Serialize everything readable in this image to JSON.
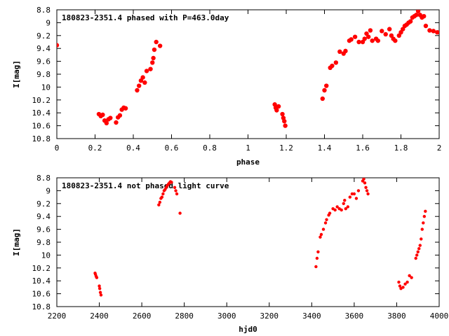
{
  "chart_data": [
    {
      "type": "scatter",
      "title": "180823-2351.4 phased with P=463.0day",
      "xlabel": "phase",
      "ylabel": "I[mag]",
      "xlim": [
        0,
        2
      ],
      "ylim": [
        10.8,
        8.8
      ],
      "x_ticks": [
        0,
        0.2,
        0.4,
        0.6,
        0.8,
        1,
        1.2,
        1.4,
        1.6,
        1.8,
        2
      ],
      "x_tick_labels": [
        "0",
        "0.2",
        "0.4",
        "0.6",
        "0.8",
        "1",
        "1.2",
        "1.4",
        "1.6",
        "1.8",
        "2"
      ],
      "y_ticks": [
        8.8,
        9,
        9.2,
        9.4,
        9.6,
        9.8,
        10,
        10.2,
        10.4,
        10.6,
        10.8
      ],
      "y_tick_labels": [
        "8.8",
        "9",
        "9.2",
        "9.4",
        "9.6",
        "9.8",
        "10",
        "10.2",
        "10.4",
        "10.6",
        "10.8"
      ],
      "marker_color": "#ff0000",
      "series": [
        {
          "points": [
            [
              0.0,
              9.35
            ],
            [
              0.22,
              10.42
            ],
            [
              0.23,
              10.45
            ],
            [
              0.24,
              10.43
            ],
            [
              0.25,
              10.52
            ],
            [
              0.26,
              10.56
            ],
            [
              0.27,
              10.5
            ],
            [
              0.28,
              10.48
            ],
            [
              0.31,
              10.55
            ],
            [
              0.32,
              10.47
            ],
            [
              0.33,
              10.44
            ],
            [
              0.34,
              10.35
            ],
            [
              0.35,
              10.32
            ],
            [
              0.36,
              10.33
            ],
            [
              0.42,
              10.05
            ],
            [
              0.43,
              9.98
            ],
            [
              0.44,
              9.9
            ],
            [
              0.45,
              9.85
            ],
            [
              0.46,
              9.93
            ],
            [
              0.47,
              9.75
            ],
            [
              0.49,
              9.72
            ],
            [
              0.5,
              9.62
            ],
            [
              0.505,
              9.55
            ],
            [
              0.51,
              9.42
            ],
            [
              0.52,
              9.3
            ],
            [
              0.54,
              9.36
            ],
            [
              1.14,
              10.27
            ],
            [
              1.145,
              10.32
            ],
            [
              1.15,
              10.36
            ],
            [
              1.16,
              10.3
            ],
            [
              1.18,
              10.42
            ],
            [
              1.185,
              10.48
            ],
            [
              1.19,
              10.53
            ],
            [
              1.195,
              10.6
            ],
            [
              1.39,
              10.18
            ],
            [
              1.4,
              10.05
            ],
            [
              1.41,
              9.98
            ],
            [
              1.43,
              9.7
            ],
            [
              1.44,
              9.67
            ],
            [
              1.46,
              9.62
            ],
            [
              1.48,
              9.45
            ],
            [
              1.5,
              9.48
            ],
            [
              1.51,
              9.44
            ],
            [
              1.53,
              9.28
            ],
            [
              1.54,
              9.26
            ],
            [
              1.56,
              9.22
            ],
            [
              1.58,
              9.3
            ],
            [
              1.6,
              9.3
            ],
            [
              1.61,
              9.25
            ],
            [
              1.62,
              9.17
            ],
            [
              1.63,
              9.22
            ],
            [
              1.64,
              9.12
            ],
            [
              1.65,
              9.28
            ],
            [
              1.67,
              9.25
            ],
            [
              1.68,
              9.28
            ],
            [
              1.7,
              9.13
            ],
            [
              1.72,
              9.18
            ],
            [
              1.74,
              9.1
            ],
            [
              1.75,
              9.2
            ],
            [
              1.76,
              9.25
            ],
            [
              1.77,
              9.28
            ],
            [
              1.79,
              9.2
            ],
            [
              1.8,
              9.15
            ],
            [
              1.81,
              9.1
            ],
            [
              1.82,
              9.05
            ],
            [
              1.83,
              9.03
            ],
            [
              1.84,
              9.0
            ],
            [
              1.85,
              8.98
            ],
            [
              1.86,
              8.92
            ],
            [
              1.87,
              8.9
            ],
            [
              1.88,
              8.88
            ],
            [
              1.89,
              8.82
            ],
            [
              1.9,
              8.88
            ],
            [
              1.91,
              8.92
            ],
            [
              1.92,
              8.9
            ],
            [
              1.93,
              9.05
            ],
            [
              1.95,
              9.12
            ],
            [
              1.97,
              9.13
            ],
            [
              1.99,
              9.15
            ]
          ]
        }
      ]
    },
    {
      "type": "scatter",
      "title": "180823-2351.4 not phased light curve",
      "xlabel": "hjd0",
      "ylabel": "I[mag]",
      "xlim": [
        2200,
        4000
      ],
      "ylim": [
        10.8,
        8.8
      ],
      "x_ticks": [
        2200,
        2400,
        2600,
        2800,
        3000,
        3200,
        3400,
        3600,
        3800,
        4000
      ],
      "x_tick_labels": [
        "2200",
        "2400",
        "2600",
        "2800",
        "3000",
        "3200",
        "3400",
        "3600",
        "3800",
        "4000"
      ],
      "y_ticks": [
        8.8,
        9,
        9.2,
        9.4,
        9.6,
        9.8,
        10,
        10.2,
        10.4,
        10.6,
        10.8
      ],
      "y_tick_labels": [
        "8.8",
        "9",
        "9.2",
        "9.4",
        "9.6",
        "9.8",
        "10",
        "10.2",
        "10.4",
        "10.6",
        "10.8"
      ],
      "marker_color": "#ff0000",
      "series": [
        {
          "points": [
            [
              2380,
              10.28
            ],
            [
              2382,
              10.3
            ],
            [
              2385,
              10.33
            ],
            [
              2388,
              10.35
            ],
            [
              2400,
              10.48
            ],
            [
              2402,
              10.52
            ],
            [
              2405,
              10.58
            ],
            [
              2408,
              10.62
            ],
            [
              2680,
              9.22
            ],
            [
              2685,
              9.18
            ],
            [
              2690,
              9.12
            ],
            [
              2695,
              9.1
            ],
            [
              2700,
              9.05
            ],
            [
              2705,
              9.0
            ],
            [
              2710,
              8.98
            ],
            [
              2715,
              8.95
            ],
            [
              2720,
              8.92
            ],
            [
              2725,
              8.9
            ],
            [
              2730,
              8.88
            ],
            [
              2735,
              8.86
            ],
            [
              2740,
              8.87
            ],
            [
              2755,
              8.95
            ],
            [
              2760,
              9.0
            ],
            [
              2765,
              9.05
            ],
            [
              2780,
              9.35
            ],
            [
              3420,
              10.18
            ],
            [
              3425,
              10.05
            ],
            [
              3430,
              9.95
            ],
            [
              3440,
              9.72
            ],
            [
              3445,
              9.68
            ],
            [
              3455,
              9.6
            ],
            [
              3465,
              9.5
            ],
            [
              3470,
              9.45
            ],
            [
              3480,
              9.38
            ],
            [
              3485,
              9.35
            ],
            [
              3500,
              9.28
            ],
            [
              3510,
              9.3
            ],
            [
              3520,
              9.25
            ],
            [
              3530,
              9.28
            ],
            [
              3540,
              9.3
            ],
            [
              3550,
              9.2
            ],
            [
              3555,
              9.15
            ],
            [
              3560,
              9.28
            ],
            [
              3570,
              9.25
            ],
            [
              3580,
              9.1
            ],
            [
              3590,
              9.05
            ],
            [
              3600,
              9.05
            ],
            [
              3610,
              9.12
            ],
            [
              3620,
              9.0
            ],
            [
              3640,
              8.85
            ],
            [
              3645,
              8.82
            ],
            [
              3650,
              8.88
            ],
            [
              3655,
              8.95
            ],
            [
              3660,
              9.0
            ],
            [
              3665,
              9.05
            ],
            [
              3810,
              10.42
            ],
            [
              3815,
              10.48
            ],
            [
              3820,
              10.52
            ],
            [
              3830,
              10.5
            ],
            [
              3840,
              10.45
            ],
            [
              3850,
              10.42
            ],
            [
              3860,
              10.32
            ],
            [
              3870,
              10.35
            ],
            [
              3890,
              10.05
            ],
            [
              3895,
              10.0
            ],
            [
              3900,
              9.95
            ],
            [
              3905,
              9.9
            ],
            [
              3910,
              9.85
            ],
            [
              3915,
              9.75
            ],
            [
              3920,
              9.6
            ],
            [
              3925,
              9.5
            ],
            [
              3930,
              9.4
            ],
            [
              3935,
              9.32
            ]
          ]
        }
      ]
    }
  ]
}
